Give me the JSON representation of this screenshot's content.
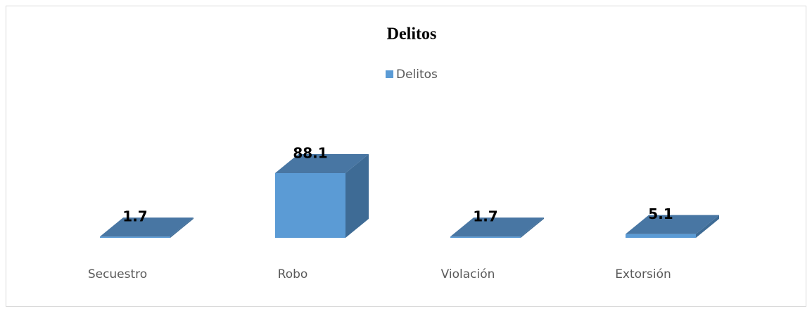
{
  "chart_data": {
    "type": "bar",
    "title": "Delitos",
    "categories": [
      "Secuestro",
      "Robo",
      "Violación",
      "Extorsión"
    ],
    "series": [
      {
        "name": "Delitos",
        "color": "#5b9bd5",
        "values": [
          1.7,
          88.1,
          1.7,
          5.1
        ]
      }
    ],
    "legend": "top"
  }
}
